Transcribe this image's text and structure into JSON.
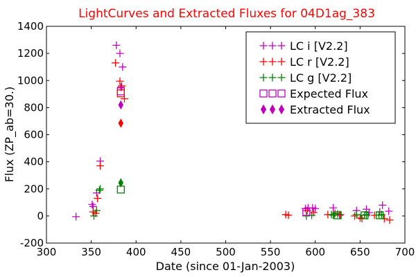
{
  "chart_data": {
    "type": "scatter",
    "title": "LightCurves and Extracted Fluxes for 04D1ag_383",
    "xlabel": "Date (since 01-Jan-2003)",
    "ylabel": "Flux (ZP_ab=30.)",
    "xlim": [
      300,
      700
    ],
    "ylim": [
      -200,
      1400
    ],
    "xticks": [
      300,
      350,
      400,
      450,
      500,
      550,
      600,
      650,
      700
    ],
    "yticks": [
      -200,
      0,
      200,
      400,
      600,
      800,
      1000,
      1200,
      1400
    ],
    "xtick_labels": [
      "300",
      "350",
      "400",
      "450",
      "500",
      "550",
      "600",
      "650",
      "700"
    ],
    "ytick_labels": [
      "-200",
      "0",
      "200",
      "400",
      "600",
      "800",
      "1000",
      "1200",
      "1400"
    ],
    "grid": false,
    "legend_position": "top-right",
    "title_color": "#ff0000",
    "series": [
      {
        "name": "LC i [V2.2]",
        "marker": "plus",
        "color": "#bf00bf",
        "points": [
          [
            333,
            -5
          ],
          [
            351,
            85
          ],
          [
            352,
            70
          ],
          [
            356,
            170
          ],
          [
            360,
            405
          ],
          [
            378,
            1260
          ],
          [
            382,
            1200
          ],
          [
            385,
            1100
          ],
          [
            383,
            950
          ],
          [
            589,
            55
          ],
          [
            592,
            60
          ],
          [
            597,
            60
          ],
          [
            600,
            55
          ],
          [
            620,
            60
          ],
          [
            627,
            5
          ],
          [
            646,
            40
          ],
          [
            657,
            50
          ],
          [
            660,
            25
          ],
          [
            672,
            30
          ],
          [
            675,
            80
          ],
          [
            682,
            35
          ]
        ]
      },
      {
        "name": "LC r [V2.2]",
        "marker": "plus",
        "color": "#ff0000",
        "points": [
          [
            352,
            30
          ],
          [
            355,
            20
          ],
          [
            357,
            130
          ],
          [
            360,
            370
          ],
          [
            377,
            1130
          ],
          [
            382,
            995
          ],
          [
            384,
            960
          ],
          [
            387,
            865
          ],
          [
            567,
            10
          ],
          [
            570,
            5
          ],
          [
            591,
            40
          ],
          [
            598,
            25
          ],
          [
            614,
            10
          ],
          [
            622,
            20
          ],
          [
            628,
            10
          ],
          [
            644,
            0
          ],
          [
            650,
            -15
          ],
          [
            652,
            -20
          ],
          [
            666,
            5
          ],
          [
            677,
            -20
          ],
          [
            683,
            -30
          ]
        ]
      },
      {
        "name": "LC g [V2.2]",
        "marker": "plus",
        "color": "#008000",
        "points": [
          [
            353,
            0
          ],
          [
            356,
            40
          ],
          [
            359,
            190
          ],
          [
            360,
            200
          ],
          [
            590,
            0
          ],
          [
            596,
            5
          ],
          [
            618,
            10
          ],
          [
            620,
            5
          ],
          [
            625,
            15
          ],
          [
            646,
            10
          ],
          [
            655,
            5
          ],
          [
            657,
            10
          ],
          [
            671,
            5
          ],
          [
            674,
            10
          ]
        ]
      },
      {
        "name": "Expected Flux",
        "marker": "square",
        "color": "#bf00bf",
        "points": [
          [
            383,
            920
          ],
          [
            383,
            905
          ],
          [
            383,
            195
          ],
          [
            590,
            30
          ],
          [
            625,
            5
          ],
          [
            655,
            5
          ],
          [
            672,
            5
          ]
        ],
        "point_colors": [
          "#bf00bf",
          "#ff0000",
          "#008000",
          "#bf00bf",
          "#008000",
          "#008000",
          "#008000"
        ]
      },
      {
        "name": "Extracted Flux",
        "marker": "diamond",
        "color": "#bf00bf",
        "points": [
          [
            383,
            820
          ],
          [
            383,
            685
          ],
          [
            383,
            245
          ]
        ],
        "point_colors": [
          "#bf00bf",
          "#ff0000",
          "#008000"
        ]
      }
    ]
  }
}
